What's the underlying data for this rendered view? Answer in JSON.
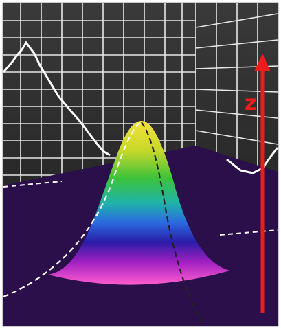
{
  "axis_label": "z"
}
